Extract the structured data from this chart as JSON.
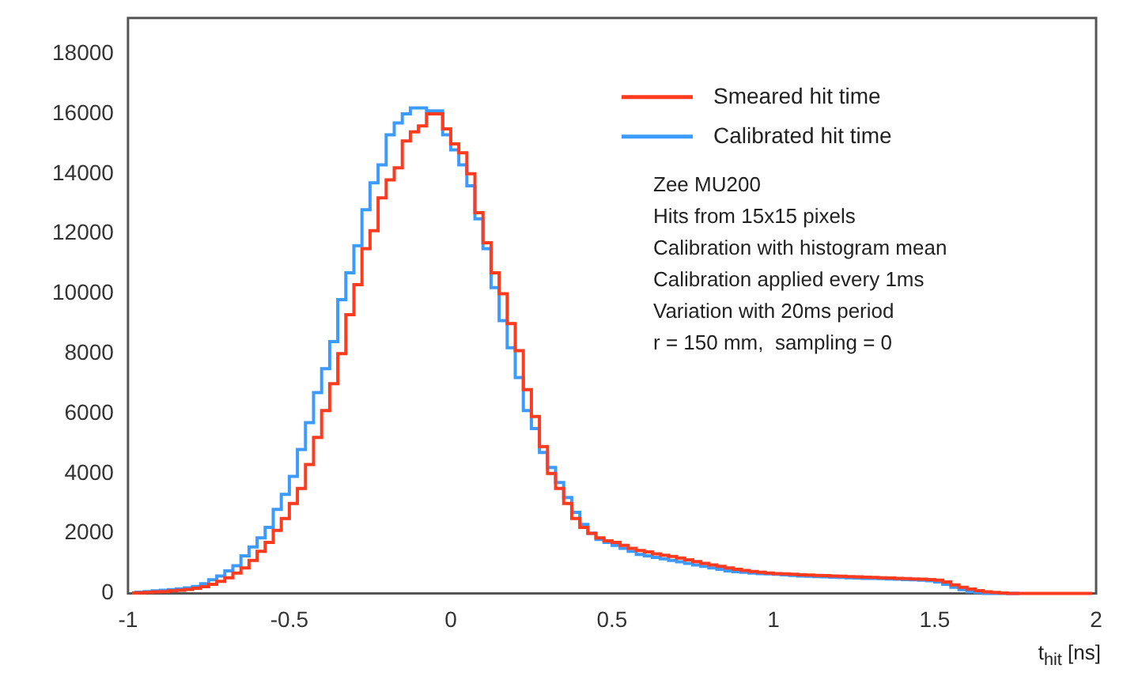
{
  "chart_data": {
    "type": "step",
    "xlabel": "t$_{hit}$ [ns]",
    "x": [
      -0.9875,
      -0.9625,
      -0.9375,
      -0.9125,
      -0.8875,
      -0.8625,
      -0.8375,
      -0.8125,
      -0.7875,
      -0.7625,
      -0.7375,
      -0.7125,
      -0.6875,
      -0.6625,
      -0.6375,
      -0.6125,
      -0.5875,
      -0.5625,
      -0.5375,
      -0.5125,
      -0.4875,
      -0.4625,
      -0.4375,
      -0.4125,
      -0.3875,
      -0.3625,
      -0.3375,
      -0.3125,
      -0.2875,
      -0.2625,
      -0.2375,
      -0.2125,
      -0.1875,
      -0.1625,
      -0.1375,
      -0.1125,
      -0.0875,
      -0.0625,
      -0.0375,
      -0.0125,
      0.0125,
      0.0375,
      0.0625,
      0.0875,
      0.1125,
      0.1375,
      0.1625,
      0.1875,
      0.2125,
      0.2375,
      0.2625,
      0.2875,
      0.3125,
      0.3375,
      0.3625,
      0.3875,
      0.4125,
      0.4375,
      0.4625,
      0.4875,
      0.5125,
      0.5375,
      0.5625,
      0.5875,
      0.6125,
      0.6375,
      0.6625,
      0.6875,
      0.7125,
      0.7375,
      0.7625,
      0.7875,
      0.8125,
      0.8375,
      0.8625,
      0.8875,
      0.9125,
      0.9375,
      0.9625,
      0.9875,
      1.0125,
      1.0375,
      1.0625,
      1.0875,
      1.1125,
      1.1375,
      1.1625,
      1.1875,
      1.2125,
      1.2375,
      1.2625,
      1.2875,
      1.3125,
      1.3375,
      1.3625,
      1.3875,
      1.4125,
      1.4375,
      1.4625,
      1.4875,
      1.5125,
      1.5375,
      1.5625,
      1.5875,
      1.6125,
      1.6375,
      1.6625,
      1.6875,
      1.7125,
      1.7375,
      1.7625,
      1.7875,
      1.8125,
      1.8375,
      1.8625,
      1.8875,
      1.9125,
      1.9375,
      1.9625,
      1.9875
    ],
    "series": [
      {
        "name": "Smeared hit time",
        "color": "#ff3b1f",
        "values": [
          10,
          20,
          30,
          50,
          60,
          80,
          100,
          130,
          170,
          220,
          300,
          400,
          520,
          680,
          850,
          1100,
          1400,
          1700,
          2100,
          2500,
          3000,
          3500,
          4300,
          5200,
          6100,
          7000,
          8000,
          9300,
          10300,
          11500,
          12100,
          13200,
          13800,
          14200,
          15100,
          15400,
          15600,
          16000,
          16000,
          15500,
          15000,
          14700,
          14000,
          12700,
          11700,
          10700,
          10000,
          9000,
          8100,
          6800,
          5900,
          4900,
          4000,
          3500,
          3000,
          2500,
          2200,
          2000,
          1850,
          1750,
          1700,
          1600,
          1500,
          1430,
          1380,
          1320,
          1270,
          1230,
          1180,
          1120,
          1060,
          1000,
          950,
          900,
          850,
          800,
          760,
          730,
          700,
          680,
          660,
          650,
          640,
          620,
          610,
          600,
          590,
          580,
          570,
          560,
          550,
          540,
          530,
          520,
          510,
          500,
          490,
          480,
          470,
          460,
          440,
          380,
          280,
          200,
          140,
          90,
          50,
          30,
          10,
          0,
          0,
          0,
          0,
          0,
          0,
          0,
          0,
          0,
          0,
          0
        ]
      },
      {
        "name": "Calibrated hit time",
        "color": "#3d9bff",
        "values": [
          20,
          40,
          60,
          80,
          100,
          120,
          150,
          180,
          230,
          320,
          450,
          580,
          750,
          920,
          1250,
          1550,
          1850,
          2200,
          2800,
          3300,
          3900,
          4800,
          5700,
          6700,
          7500,
          8400,
          9800,
          10700,
          11600,
          12800,
          13700,
          14300,
          15300,
          15700,
          16000,
          16200,
          16200,
          16100,
          16100,
          15300,
          14800,
          14300,
          13600,
          12500,
          11500,
          10200,
          9100,
          8200,
          7200,
          6100,
          5500,
          4700,
          4200,
          3700,
          3200,
          2700,
          2300,
          2000,
          1800,
          1700,
          1600,
          1500,
          1400,
          1300,
          1250,
          1200,
          1150,
          1100,
          1050,
          1000,
          950,
          900,
          850,
          800,
          750,
          720,
          700,
          680,
          660,
          650,
          640,
          620,
          600,
          580,
          570,
          560,
          550,
          540,
          530,
          520,
          510,
          500,
          500,
          490,
          480,
          470,
          460,
          450,
          440,
          420,
          380,
          300,
          200,
          120,
          60,
          30,
          0,
          0,
          0,
          0,
          0,
          null,
          null,
          null,
          null,
          null,
          null,
          null,
          null,
          null
        ]
      }
    ],
    "xlim": [
      -1,
      2
    ],
    "xticks": [
      {
        "value": -1,
        "label": "-1"
      },
      {
        "value": -0.5,
        "label": "-0.5"
      },
      0,
      0.5,
      1,
      1.5,
      2
    ],
    "ylim": [
      0,
      19200
    ],
    "yticks": [
      0,
      2000,
      4000,
      6000,
      8000,
      10000,
      12000,
      14000,
      16000,
      18000
    ],
    "legend": "top right",
    "annotations": [
      "Zee MU200",
      "Hits from 15x15 pixels",
      "Calibration with histogram mean",
      "Calibration applied every 1ms",
      "Variation with 20ms period",
      "r = 150 mm,  sampling = 0"
    ]
  }
}
